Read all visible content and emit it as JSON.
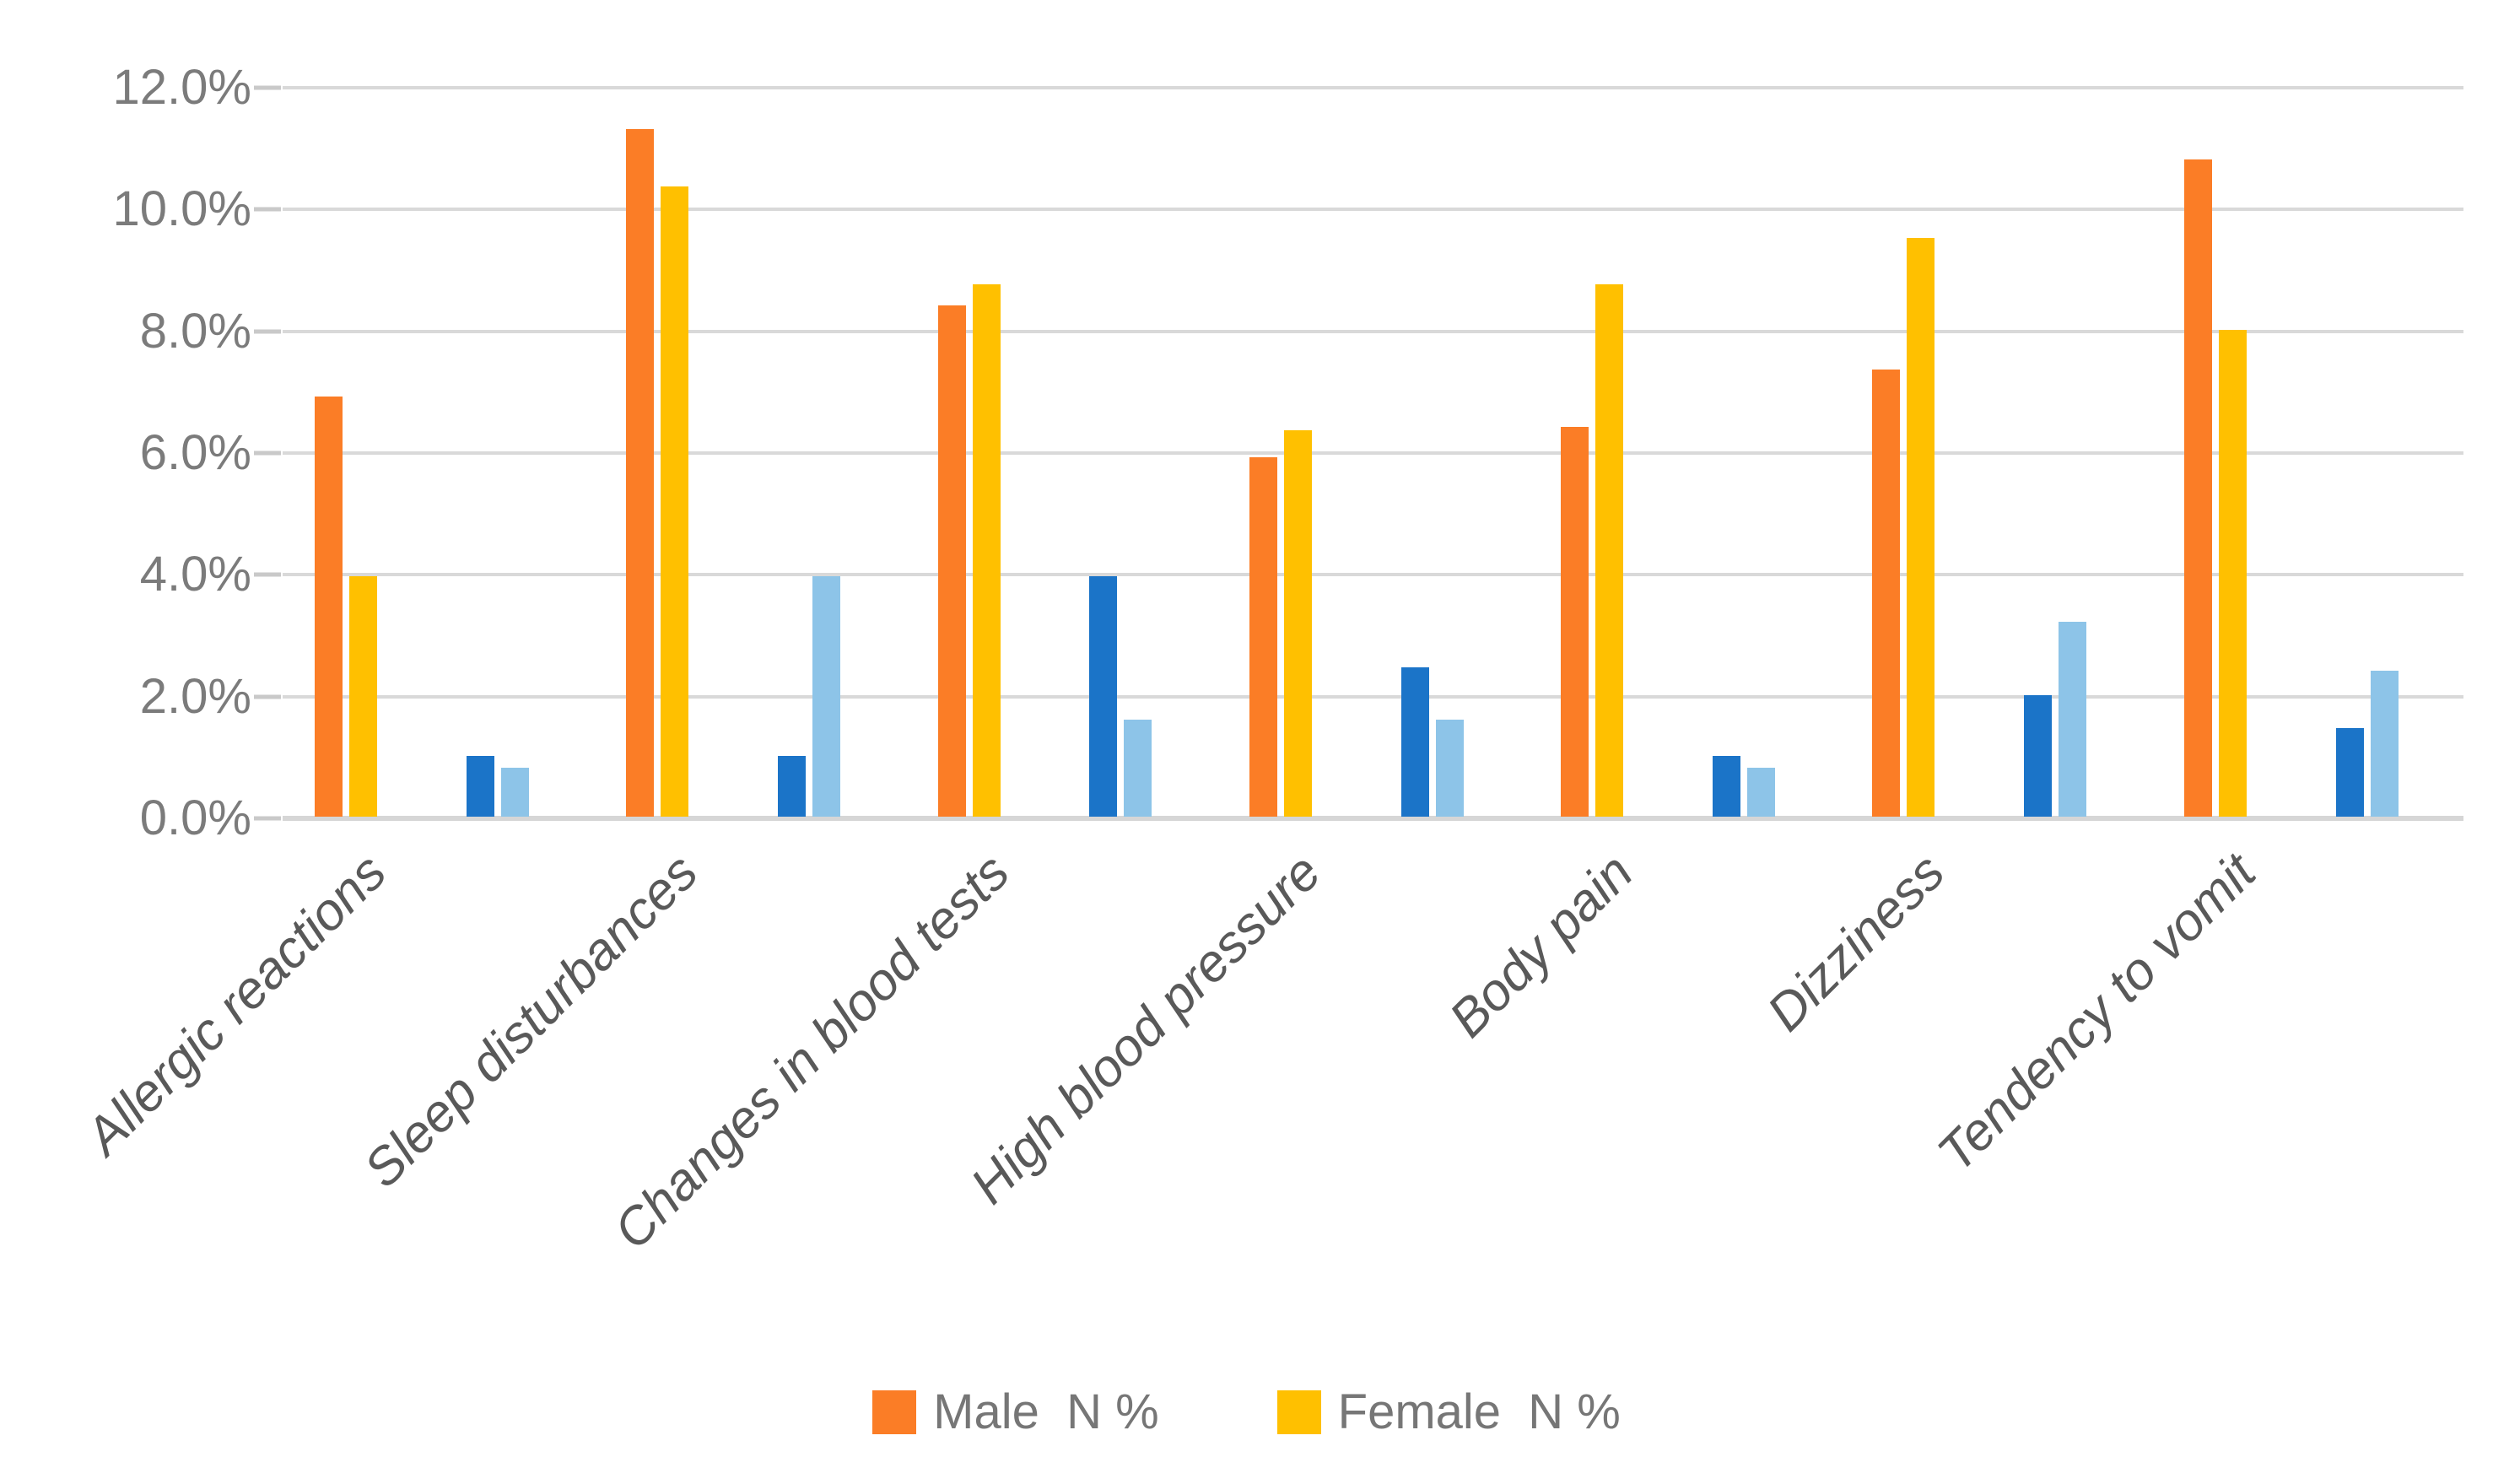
{
  "chart_data": {
    "type": "bar",
    "unit": "percent",
    "categories": [
      "Allergic reactions",
      "Sleep disturbances",
      "Changes in blood tests",
      "High blood pressure",
      "Body pain",
      "Dizziness",
      "Tendency to vomit"
    ],
    "y_axis": {
      "min": 0,
      "max": 12,
      "step": 2,
      "tick_labels": [
        "0.0%",
        "2.0%",
        "4.0%",
        "6.0%",
        "8.0%",
        "10.0%",
        "12.0%"
      ]
    },
    "series": [
      {
        "key": "male_n_pct",
        "legend_label": "Male  N %",
        "color": "#FB7D26",
        "values": [
          6.9,
          11.3,
          8.4,
          5.9,
          6.4,
          7.35,
          10.8
        ]
      },
      {
        "key": "female_n_pct",
        "legend_label": "Female  N %",
        "color": "#FFC000",
        "values": [
          3.95,
          10.35,
          8.75,
          6.35,
          8.75,
          9.5,
          8.0
        ]
      },
      {
        "key": "unlabeled_dark_blue",
        "legend_label": null,
        "color": "#1B74C8",
        "values": [
          1.0,
          1.0,
          3.95,
          2.45,
          1.0,
          2.0,
          1.45
        ]
      },
      {
        "key": "unlabeled_light_blue",
        "legend_label": null,
        "color": "#8DC4E8",
        "values": [
          0.8,
          3.95,
          1.6,
          1.6,
          0.8,
          3.2,
          2.4
        ]
      }
    ],
    "legend": {
      "position": "bottom"
    },
    "grid": true,
    "colors": {
      "gridline": "#D9D9D9",
      "axis_line": "#D6D6D6",
      "tick_text": "#7B7B7B",
      "category_text": "#595959",
      "legend_text": "#767676"
    }
  }
}
